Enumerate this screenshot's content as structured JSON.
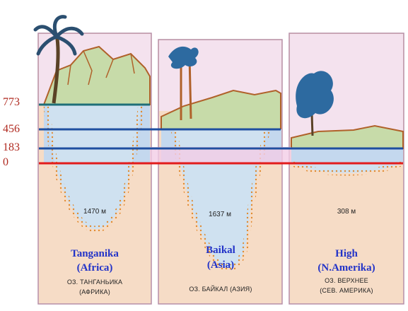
{
  "levels": {
    "l773": "773",
    "l456": "456",
    "l183": "183",
    "l0": "0"
  },
  "lakes": [
    {
      "depth": "1470 м",
      "name_line1": "Tanganika",
      "name_line2": "(Africa)",
      "ru_line1": "ОЗ. ТАНГАНЬИКА",
      "ru_line2": "(АФРИКА)"
    },
    {
      "depth": "1637 м",
      "name_line1": "Baikal",
      "name_line2": "(Asia)",
      "ru_line1": "ОЗ. БАЙКАЛ (АЗИЯ)",
      "ru_line2": ""
    },
    {
      "depth": "308 м",
      "name_line1": "High",
      "name_line2": "(N.Amerika)",
      "ru_line1": "ОЗ. ВЕРХНЕЕ",
      "ru_line2": "(СЕВ. АМЕРИКА)"
    }
  ],
  "colors": {
    "panel": "#f6dcc6",
    "sky": "#f4e2ee",
    "water": "#c4d8ee",
    "lake_fill": "#cfe1f0",
    "line_773": "#1f6f78",
    "line_blue": "#1f4fa0",
    "line_zero": "#e21c1c",
    "label": "#b02a20",
    "name": "#2233c8"
  },
  "icons": [
    "palm-tree-icon",
    "pine-tree-icon",
    "leafy-tree-icon",
    "mountains-icon"
  ]
}
